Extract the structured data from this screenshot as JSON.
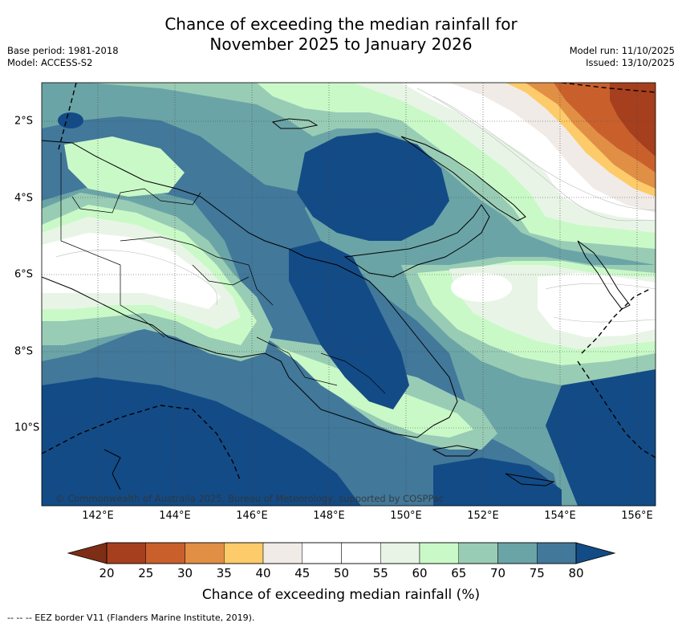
{
  "title": {
    "line1": "Chance of exceeding the median rainfall for",
    "line2": "November 2025 to January 2026"
  },
  "meta_left": {
    "base_period": "Base period: 1981-2018",
    "model": "Model: ACCESS-S2"
  },
  "meta_right": {
    "model_run": "Model run: 11/10/2025",
    "issued": "Issued: 13/10/2025"
  },
  "map": {
    "longitude_labels": [
      "142°E",
      "144°E",
      "146°E",
      "148°E",
      "150°E",
      "152°E",
      "154°E",
      "156°E"
    ],
    "latitude_labels": [
      "2°S",
      "4°S",
      "6°S",
      "8°S",
      "10°S"
    ],
    "copyright": "© Commonwealth of Australia 2025, Bureau of Meteorology, supported by COSPPac",
    "colors": {
      "p20": "#a63f1e",
      "p25": "#c9602c",
      "p30": "#e08f45",
      "p35": "#fdcb6a",
      "p40": "#f0ebe6",
      "p45": "#ffffff",
      "p55": "#e8f5e6",
      "p60": "#caf9c8",
      "p65": "#99ccb5",
      "p70": "#6ba4a6",
      "p75": "#42789a",
      "p80": "#134b86"
    }
  },
  "colorbar": {
    "ticks": [
      "20",
      "25",
      "30",
      "35",
      "40",
      "45",
      "50",
      "55",
      "60",
      "65",
      "70",
      "75",
      "80"
    ],
    "segments": [
      "#a63f1e",
      "#c9602c",
      "#e08f45",
      "#fdcb6a",
      "#f0ebe6",
      "#ffffff",
      "#ffffff",
      "#e8f5e6",
      "#caf9c8",
      "#99ccb5",
      "#6ba4a6",
      "#42789a"
    ],
    "under_color": "#7e2e14",
    "over_color": "#134b86",
    "label": "Chance of exceeding median rainfall (%)"
  },
  "footnote": "--  --  -- EEZ border V11 (Flanders Marine Institute, 2019)."
}
